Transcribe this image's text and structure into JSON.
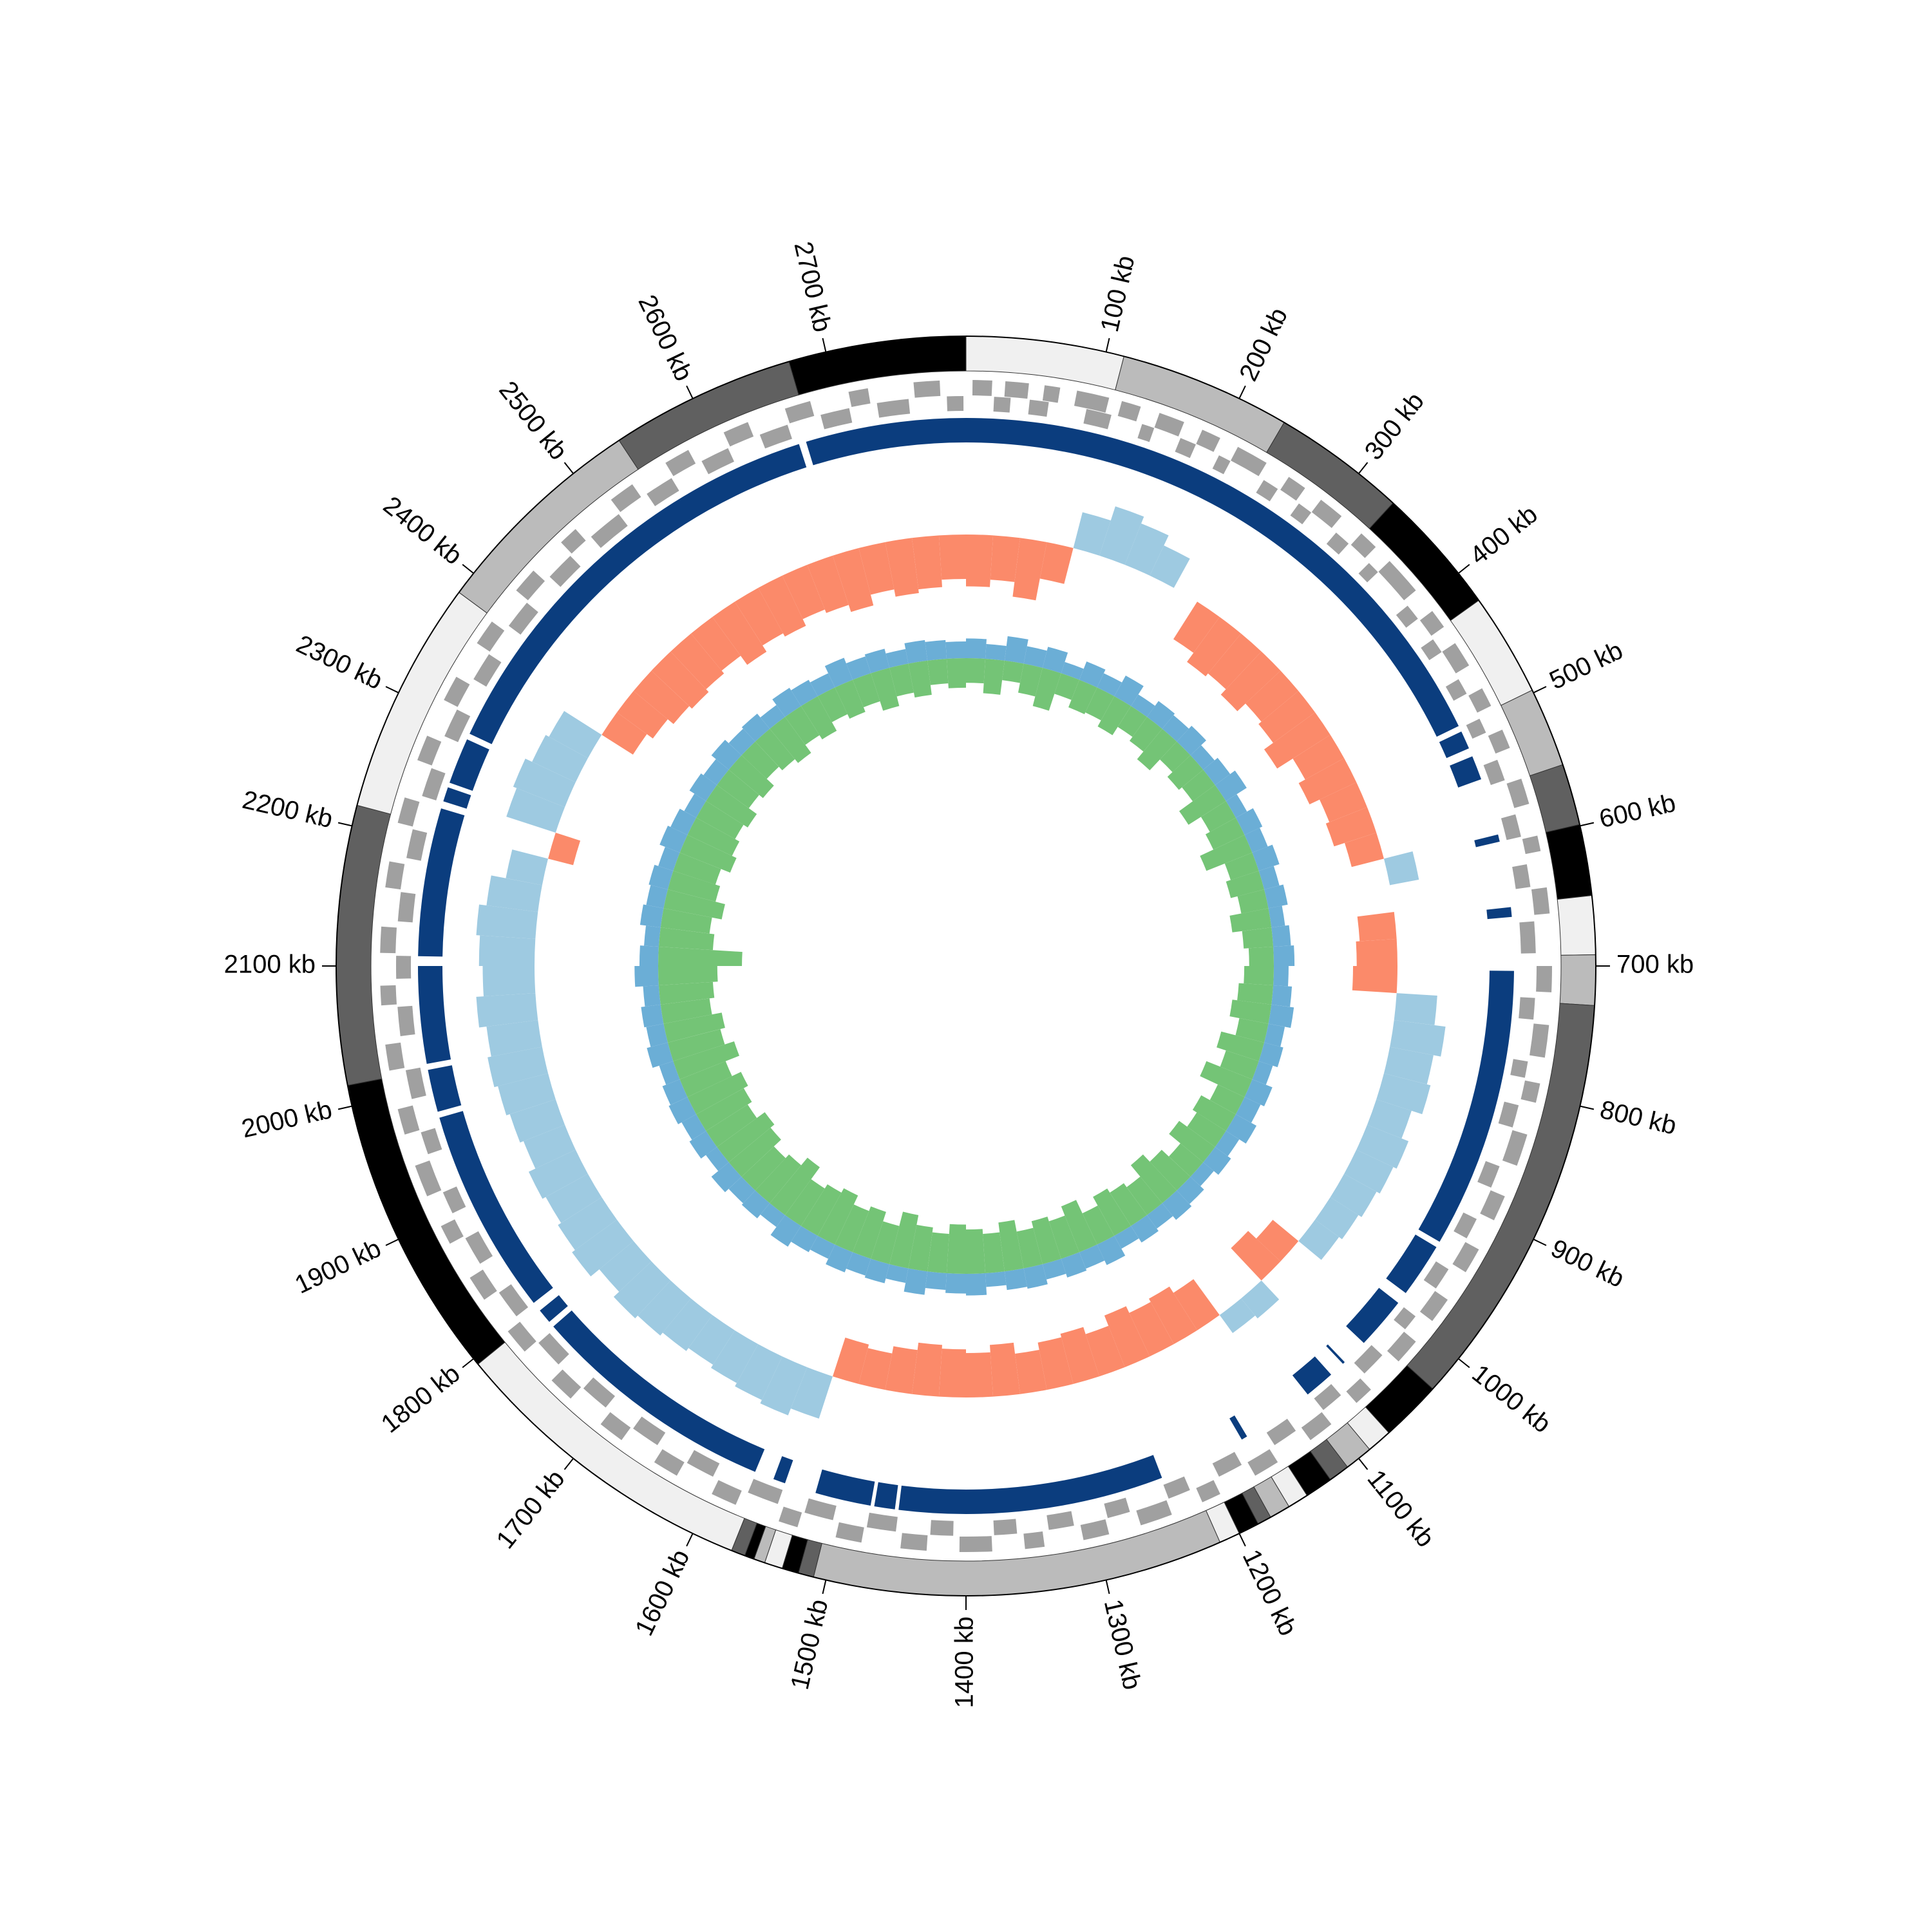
{
  "chart_data": {
    "type": "circos",
    "genome_length": 2800,
    "xticks": [
      {
        "value": 100,
        "label": "100 kb"
      },
      {
        "value": 200,
        "label": "200 kb"
      },
      {
        "value": 300,
        "label": "300 kb"
      },
      {
        "value": 400,
        "label": "400 kb"
      },
      {
        "value": 500,
        "label": "500 kb"
      },
      {
        "value": 600,
        "label": "600 kb"
      },
      {
        "value": 700,
        "label": "700 kb"
      },
      {
        "value": 800,
        "label": "800 kb"
      },
      {
        "value": 900,
        "label": "900 kb"
      },
      {
        "value": 1000,
        "label": "1000 kb"
      },
      {
        "value": 1100,
        "label": "1100 kb"
      },
      {
        "value": 1200,
        "label": "1200 kb"
      },
      {
        "value": 1300,
        "label": "1300 kb"
      },
      {
        "value": 1400,
        "label": "1400 kb"
      },
      {
        "value": 1500,
        "label": "1500 kb"
      },
      {
        "value": 1600,
        "label": "1600 kb"
      },
      {
        "value": 1700,
        "label": "1700 kb"
      },
      {
        "value": 1800,
        "label": "1800 kb"
      },
      {
        "value": 1900,
        "label": "1900 kb"
      },
      {
        "value": 2000,
        "label": "2000 kb"
      },
      {
        "value": 2100,
        "label": "2100 kb"
      },
      {
        "value": 2200,
        "label": "2200 kb"
      },
      {
        "value": 2300,
        "label": "2300 kb"
      },
      {
        "value": 2400,
        "label": "2400 kb"
      },
      {
        "value": 2500,
        "label": "2500 kb"
      },
      {
        "value": 2600,
        "label": "2600 kb"
      },
      {
        "value": 2700,
        "label": "2700 kb"
      }
    ],
    "contigs": [
      {
        "start": 0,
        "end": 113,
        "color": "#f0f0f0"
      },
      {
        "start": 113,
        "end": 236,
        "color": "#bbbbbb"
      },
      {
        "start": 236,
        "end": 332,
        "color": "#606060"
      },
      {
        "start": 332,
        "end": 424,
        "color": "#000000"
      },
      {
        "start": 424,
        "end": 498,
        "color": "#f0f0f0"
      },
      {
        "start": 498,
        "end": 555,
        "color": "#bbbbbb"
      },
      {
        "start": 555,
        "end": 599,
        "color": "#606060"
      },
      {
        "start": 599,
        "end": 650,
        "color": "#000000"
      },
      {
        "start": 650,
        "end": 692,
        "color": "#f0f0f0"
      },
      {
        "start": 692,
        "end": 728,
        "color": "#bbbbbb"
      },
      {
        "start": 728,
        "end": 1028,
        "color": "#606060"
      },
      {
        "start": 1028,
        "end": 1072,
        "color": "#000000"
      },
      {
        "start": 1072,
        "end": 1090,
        "color": "#f0f0f0"
      },
      {
        "start": 1090,
        "end": 1110,
        "color": "#bbbbbb"
      },
      {
        "start": 1110,
        "end": 1125,
        "color": "#606060"
      },
      {
        "start": 1125,
        "end": 1145,
        "color": "#000000"
      },
      {
        "start": 1145,
        "end": 1160,
        "color": "#f0f0f0"
      },
      {
        "start": 1160,
        "end": 1175,
        "color": "#bbbbbb"
      },
      {
        "start": 1175,
        "end": 1185,
        "color": "#606060"
      },
      {
        "start": 1185,
        "end": 1200,
        "color": "#000000"
      },
      {
        "start": 1200,
        "end": 1215,
        "color": "#f0f0f0"
      },
      {
        "start": 1215,
        "end": 1509,
        "color": "#bbbbbb"
      },
      {
        "start": 1509,
        "end": 1520,
        "color": "#606060"
      },
      {
        "start": 1520,
        "end": 1532,
        "color": "#000000"
      },
      {
        "start": 1532,
        "end": 1545,
        "color": "#f0f0f0"
      },
      {
        "start": 1545,
        "end": 1553,
        "color": "#bbbbbb"
      },
      {
        "start": 1553,
        "end": 1560,
        "color": "#000000"
      },
      {
        "start": 1560,
        "end": 1570,
        "color": "#606060"
      },
      {
        "start": 1570,
        "end": 1795,
        "color": "#f0f0f0"
      },
      {
        "start": 1795,
        "end": 2015,
        "color": "#000000"
      },
      {
        "start": 2015,
        "end": 2215,
        "color": "#606060"
      },
      {
        "start": 2215,
        "end": 2383,
        "color": "#f0f0f0"
      },
      {
        "start": 2383,
        "end": 2540,
        "color": "#bbbbbb"
      },
      {
        "start": 2540,
        "end": 2673,
        "color": "#606060"
      },
      {
        "start": 2673,
        "end": 2800,
        "color": "#000000"
      }
    ],
    "genes": {
      "color": "#a0a0a0",
      "forward": [
        [
          5,
          20
        ],
        [
          30,
          48
        ],
        [
          60,
          72
        ],
        [
          85,
          110
        ],
        [
          120,
          135
        ],
        [
          150,
          170
        ],
        [
          185,
          200
        ],
        [
          215,
          240
        ],
        [
          260,
          275
        ],
        [
          290,
          310
        ],
        [
          330,
          345
        ],
        [
          360,
          390
        ],
        [
          410,
          425
        ],
        [
          440,
          460
        ],
        [
          480,
          495
        ],
        [
          515,
          530
        ],
        [
          555,
          575
        ],
        [
          600,
          612
        ],
        [
          640,
          660
        ],
        [
          700,
          720
        ],
        [
          745,
          770
        ],
        [
          790,
          805
        ],
        [
          830,
          855
        ],
        [
          880,
          900
        ],
        [
          925,
          945
        ],
        [
          970,
          990
        ],
        [
          1010,
          1030
        ],
        [
          1060,
          1075
        ],
        [
          1100,
          1120
        ],
        [
          1150,
          1170
        ],
        [
          1200,
          1215
        ],
        [
          1240,
          1265
        ],
        [
          1290,
          1310
        ],
        [
          1340,
          1355
        ],
        [
          1380,
          1405
        ],
        [
          1430,
          1450
        ],
        [
          1480,
          1500
        ],
        [
          1530,
          1545
        ],
        [
          1580,
          1600
        ],
        [
          1630,
          1650
        ],
        [
          1680,
          1700
        ],
        [
          1730,
          1750
        ],
        [
          1780,
          1800
        ],
        [
          1830,
          1850
        ],
        [
          1880,
          1895
        ],
        [
          1920,
          1945
        ],
        [
          1970,
          1990
        ],
        [
          2020,
          2040
        ],
        [
          2070,
          2085
        ],
        [
          2110,
          2130
        ],
        [
          2160,
          2180
        ],
        [
          2210,
          2230
        ],
        [
          2260,
          2280
        ],
        [
          2310,
          2330
        ],
        [
          2360,
          2380
        ],
        [
          2410,
          2430
        ],
        [
          2460,
          2475
        ],
        [
          2510,
          2530
        ],
        [
          2560,
          2580
        ],
        [
          2610,
          2630
        ],
        [
          2660,
          2680
        ],
        [
          2710,
          2725
        ],
        [
          2760,
          2780
        ]
      ],
      "reverse": [
        [
          22,
          35
        ],
        [
          50,
          65
        ],
        [
          95,
          115
        ],
        [
          140,
          150
        ],
        [
          172,
          185
        ],
        [
          205,
          215
        ],
        [
          245,
          258
        ],
        [
          278,
          290
        ],
        [
          315,
          328
        ],
        [
          350,
          360
        ],
        [
          395,
          408
        ],
        [
          428,
          440
        ],
        [
          465,
          478
        ],
        [
          500,
          512
        ],
        [
          535,
          552
        ],
        [
          580,
          598
        ],
        [
          620,
          638
        ],
        [
          665,
          690
        ],
        [
          725,
          742
        ],
        [
          775,
          788
        ],
        [
          810,
          828
        ],
        [
          860,
          878
        ],
        [
          905,
          922
        ],
        [
          950,
          968
        ],
        [
          995,
          1008
        ],
        [
          1035,
          1055
        ],
        [
          1080,
          1098
        ],
        [
          1125,
          1145
        ],
        [
          1175,
          1195
        ],
        [
          1220,
          1238
        ],
        [
          1270,
          1288
        ],
        [
          1315,
          1335
        ],
        [
          1360,
          1378
        ],
        [
          1410,
          1428
        ],
        [
          1455,
          1478
        ],
        [
          1505,
          1528
        ],
        [
          1550,
          1575
        ],
        [
          1605,
          1628
        ],
        [
          1655,
          1678
        ],
        [
          1705,
          1728
        ],
        [
          1755,
          1778
        ],
        [
          1805,
          1828
        ],
        [
          1855,
          1878
        ],
        [
          1900,
          1918
        ],
        [
          1950,
          1968
        ],
        [
          1995,
          2018
        ],
        [
          2045,
          2068
        ],
        [
          2090,
          2108
        ],
        [
          2135,
          2158
        ],
        [
          2185,
          2208
        ],
        [
          2235,
          2258
        ],
        [
          2285,
          2308
        ],
        [
          2335,
          2358
        ],
        [
          2385,
          2408
        ],
        [
          2435,
          2458
        ],
        [
          2480,
          2508
        ],
        [
          2535,
          2558
        ],
        [
          2585,
          2608
        ],
        [
          2635,
          2658
        ],
        [
          2685,
          2708
        ],
        [
          2730,
          2755
        ],
        [
          2785,
          2798
        ]
      ]
    },
    "blocks": {
      "color": "#0b3d7e",
      "ranges": [
        [
          2668,
          2800
        ],
        [
          0,
          498
        ],
        [
          503,
          518
        ],
        [
          525,
          545
        ],
        [
          592,
          598
        ],
        [
          652,
          660
        ],
        [
          704,
          935
        ],
        [
          940,
          985
        ],
        [
          995,
          1038
        ],
        [
          1060,
          1062
        ],
        [
          1075,
          1100
        ],
        [
          1160,
          1165
        ],
        [
          1237,
          1455
        ],
        [
          1458,
          1475
        ],
        [
          1478,
          1524
        ],
        [
          1550,
          1560
        ],
        [
          1576,
          1780
        ],
        [
          1785,
          1797
        ],
        [
          1805,
          1975
        ],
        [
          1980,
          2015
        ],
        [
          2020,
          2100
        ],
        [
          2108,
          2230
        ],
        [
          2236,
          2248
        ],
        [
          2252,
          2290
        ],
        [
          2295,
          2662
        ]
      ]
    },
    "x": [
      0,
      28,
      56,
      84,
      112,
      140,
      168,
      196,
      224,
      252,
      280,
      308,
      336,
      364,
      392,
      420,
      448,
      476,
      504,
      532,
      560,
      588,
      616,
      644,
      672,
      700,
      728,
      756,
      784,
      812,
      840,
      868,
      896,
      924,
      952,
      980,
      1008,
      1036,
      1064,
      1092,
      1120,
      1148,
      1176,
      1204,
      1232,
      1260,
      1288,
      1316,
      1344,
      1372,
      1400,
      1428,
      1456,
      1484,
      1512,
      1540,
      1568,
      1596,
      1624,
      1652,
      1680,
      1708,
      1736,
      1764,
      1792,
      1820,
      1848,
      1876,
      1904,
      1932,
      1960,
      1988,
      2016,
      2044,
      2072,
      2100,
      2128,
      2156,
      2184,
      2212,
      2240,
      2268,
      2296,
      2324,
      2352,
      2380,
      2408,
      2436,
      2464,
      2492,
      2520,
      2548,
      2576,
      2604,
      2632,
      2660,
      2688,
      2716,
      2744,
      2772
    ],
    "skew": {
      "ylim": [
        -1,
        1
      ],
      "pos_color": "#9ecae1",
      "neg_color": "#fb8a6a",
      "values": [
        -0.7,
        -0.6,
        -0.8,
        -0.5,
        0.5,
        0.7,
        0.6,
        0.45,
        null,
        -0.6,
        -0.75,
        -0.7,
        -0.8,
        -0.65,
        -0.7,
        -0.85,
        -0.6,
        -0.7,
        -0.55,
        -0.6,
        -0.45,
        0.4,
        null,
        -0.5,
        -0.55,
        -0.6,
        0.55,
        0.7,
        0.6,
        0.65,
        0.5,
        0.6,
        0.55,
        0.5,
        0.45,
        0.4,
        -0.45,
        -0.6,
        0.35,
        0.3,
        -0.6,
        -0.7,
        -0.65,
        -0.75,
        -0.6,
        -0.7,
        -0.65,
        -0.55,
        -0.7,
        -0.6,
        -0.65,
        -0.7,
        -0.6,
        -0.5,
        -0.55,
        0.6,
        0.7,
        0.65,
        0.6,
        0.55,
        0.6,
        0.65,
        0.7,
        0.6,
        0.75,
        0.7,
        0.65,
        0.7,
        0.6,
        0.65,
        0.7,
        0.75,
        0.7,
        0.8,
        0.7,
        0.75,
        0.8,
        0.7,
        0.5,
        -0.35,
        0.7,
        0.75,
        0.65,
        0.6,
        -0.5,
        -0.6,
        -0.7,
        -0.75,
        -0.7,
        -0.65,
        -0.8,
        -0.7,
        -0.75,
        -0.65,
        -0.7,
        -0.8,
        -0.65,
        -0.75,
        -0.7,
        -0.6
      ]
    },
    "inner": {
      "ylim": [
        -1,
        1
      ],
      "series": [
        {
          "color": "#6baed6",
          "values": [
            0.2,
            0.15,
            0.25,
            0.18,
            0.22,
            0.12,
            0.2,
            0.16,
            0.24,
            0.14,
            0.2,
            0.18,
            0.22,
            0.15,
            0.19,
            0.25,
            0.13,
            0.2,
            0.17,
            0.22,
            0.16,
            0.2,
            0.14,
            0.18,
            0.21,
            0.15,
            0.19,
            0.23,
            0.17,
            0.2,
            0.15,
            0.22,
            0.18,
            0.24,
            0.16,
            0.2,
            0.14,
            0.19,
            0.22,
            0.17,
            0.2,
            0.15,
            0.23,
            0.18,
            0.2,
            0.16,
            0.21,
            0.19,
            0.14,
            0.22,
            0.2,
            0.17,
            0.24,
            0.15,
            0.2,
            0.18,
            0.22,
            0.16,
            0.19,
            0.25,
            0.15,
            0.2,
            0.18,
            0.23,
            0.14,
            0.2,
            0.17,
            0.21,
            0.19,
            0.15,
            0.22,
            0.18,
            0.2,
            0.16,
            0.24,
            0.19,
            0.15,
            0.21,
            0.18,
            0.2,
            0.16,
            0.22,
            0.19,
            0.14,
            0.2,
            0.17,
            0.23,
            0.18,
            0.2,
            0.15,
            0.22,
            0.19,
            0.16,
            0.24,
            0.18,
            0.2,
            0.15,
            0.21,
            0.19,
            0.17
          ]
        },
        {
          "color": "#74c476",
          "values": [
            -0.25,
            -0.35,
            -0.2,
            -0.3,
            -0.4,
            -0.22,
            -0.3,
            -0.28,
            -0.35,
            -0.25,
            -0.3,
            -0.4,
            -0.25,
            -0.32,
            -0.28,
            -0.45,
            -0.3,
            -0.35,
            -0.5,
            -0.3,
            -0.35,
            -0.28,
            -0.4,
            -0.3,
            -0.25,
            -0.3,
            -0.35,
            -0.4,
            -0.3,
            -0.45,
            -0.35,
            -0.5,
            -0.3,
            -0.4,
            -0.35,
            -0.45,
            -0.3,
            -0.4,
            -0.5,
            -0.35,
            -0.4,
            -0.45,
            -0.35,
            -0.5,
            -0.4,
            -0.45,
            -0.38,
            -0.5,
            -0.4,
            -0.45,
            -0.5,
            -0.4,
            -0.45,
            -0.55,
            -0.4,
            -0.5,
            -0.45,
            -0.55,
            -0.5,
            -0.45,
            -0.6,
            -0.5,
            -0.45,
            -0.55,
            -0.6,
            -0.5,
            -0.55,
            -0.6,
            -0.5,
            -0.65,
            -0.55,
            -0.6,
            -0.5,
            -0.55,
            -0.6,
            -0.85,
            -0.55,
            -0.5,
            -0.6,
            -0.5,
            -0.45,
            -0.55,
            -0.5,
            -0.45,
            -0.5,
            -0.4,
            -0.45,
            -0.35,
            -0.4,
            -0.45,
            -0.35,
            -0.4,
            -0.3,
            -0.35,
            -0.3,
            -0.4,
            -0.3,
            -0.35,
            -0.25,
            -0.3
          ]
        }
      ]
    }
  }
}
